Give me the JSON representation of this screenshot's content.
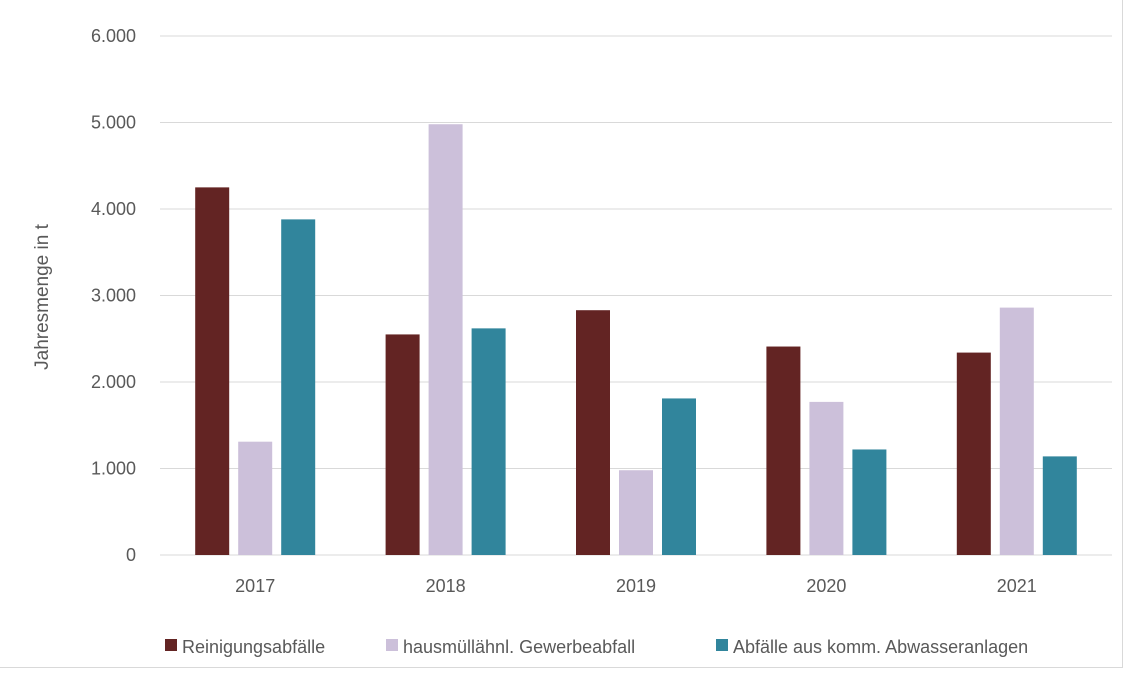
{
  "chart_data": {
    "type": "bar",
    "ylabel": "Jahresmenge in t",
    "xlabel": "",
    "categories": [
      "2017",
      "2018",
      "2019",
      "2020",
      "2021"
    ],
    "ylim": [
      0,
      6000
    ],
    "yticks": [
      0,
      1000,
      2000,
      3000,
      4000,
      5000,
      6000
    ],
    "ytick_labels": [
      "0",
      "1.000",
      "2.000",
      "3.000",
      "4.000",
      "5.000",
      "6.000"
    ],
    "grid": true,
    "legend_position": "bottom",
    "series": [
      {
        "name": "Reinigungsabfälle",
        "color": "#632423",
        "values": [
          4250,
          2550,
          2830,
          2410,
          2340
        ]
      },
      {
        "name": "hausmüllähnl. Gewerbeabfall",
        "color": "#ccc0da",
        "values": [
          1310,
          4980,
          980,
          1770,
          2860
        ]
      },
      {
        "name": "Abfälle aus komm. Abwasseranlagen",
        "color": "#31859c",
        "values": [
          3880,
          2620,
          1810,
          1220,
          1140
        ]
      }
    ]
  }
}
